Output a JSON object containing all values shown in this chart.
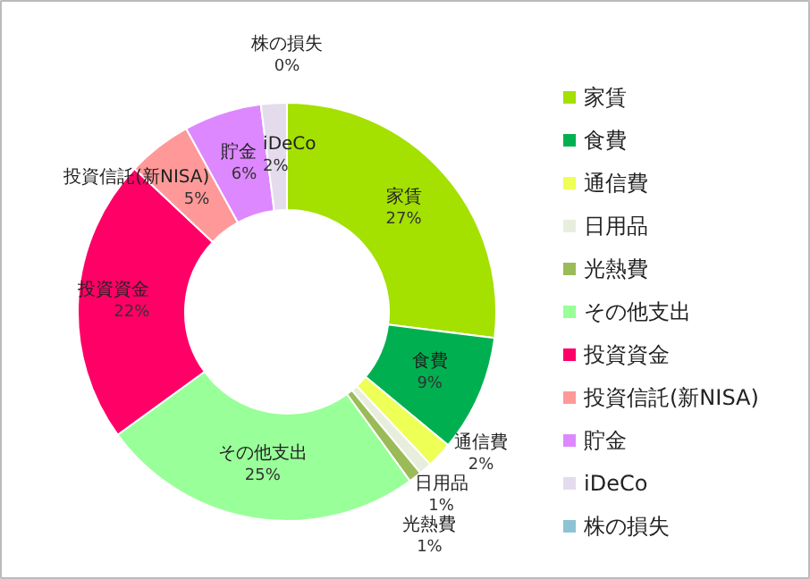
{
  "chart_data": {
    "type": "donut",
    "categories": [
      "家賃",
      "食費",
      "通信費",
      "日用品",
      "光熱費",
      "その他支出",
      "投資資金",
      "投資信託(新NISA)",
      "貯金",
      "iDeCo",
      "株の損失"
    ],
    "values": [
      27,
      9,
      2,
      1,
      1,
      25,
      22,
      5,
      6,
      2,
      0
    ],
    "value_labels": [
      "27%",
      "9%",
      "2%",
      "1%",
      "1%",
      "25%",
      "22%",
      "5%",
      "6%",
      "2%",
      "0%"
    ],
    "colors": [
      "#a4e000",
      "#00b050",
      "#eeff55",
      "#e8eedd",
      "#9bbb59",
      "#99ff99",
      "#ff0066",
      "#ff9999",
      "#dd88ff",
      "#e4dcec",
      "#8cc4d4"
    ],
    "legend": "right"
  }
}
